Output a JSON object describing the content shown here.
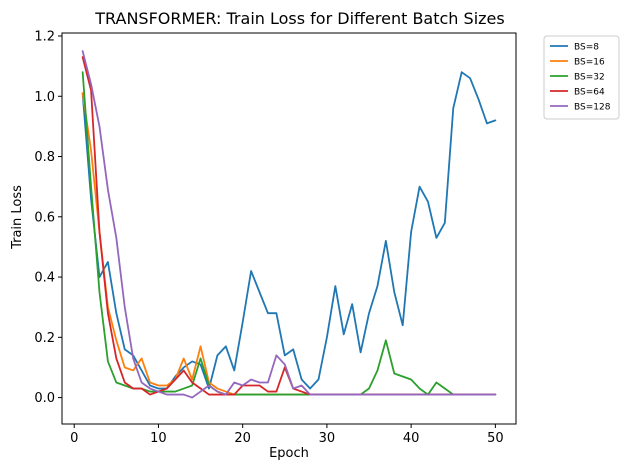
{
  "chart_data": {
    "type": "line",
    "title": "TRANSFORMER: Train Loss for Different Batch Sizes",
    "xlabel": "Epoch",
    "ylabel": "Train Loss",
    "xlim": [
      -1.45,
      52.45
    ],
    "ylim": [
      -0.0877,
      1.21
    ],
    "xticks": [
      0,
      10,
      20,
      30,
      40,
      50
    ],
    "yticks": [
      0.0,
      0.2,
      0.4,
      0.6,
      0.8,
      1.0,
      1.2
    ],
    "ytick_labels": [
      "0.0",
      "0.2",
      "0.4",
      "0.6",
      "0.8",
      "1.0",
      "1.2"
    ],
    "grid": false,
    "legend_position": "outside-top-right",
    "series": [
      {
        "name": "BS=8",
        "color": "#1f77b4",
        "x": [
          1,
          2,
          3,
          4,
          5,
          6,
          7,
          8,
          9,
          10,
          11,
          12,
          13,
          14,
          15,
          16,
          17,
          18,
          19,
          20,
          21,
          22,
          23,
          24,
          25,
          26,
          27,
          28,
          29,
          30,
          31,
          32,
          33,
          34,
          35,
          36,
          37,
          38,
          39,
          40,
          41,
          42,
          43,
          44,
          45,
          46,
          47,
          48,
          49,
          50
        ],
        "values": [
          1.01,
          0.66,
          0.4,
          0.45,
          0.28,
          0.16,
          0.14,
          0.09,
          0.04,
          0.03,
          0.03,
          0.07,
          0.1,
          0.12,
          0.11,
          0.03,
          0.14,
          0.17,
          0.09,
          0.25,
          0.42,
          0.35,
          0.28,
          0.28,
          0.14,
          0.16,
          0.06,
          0.03,
          0.06,
          0.2,
          0.37,
          0.21,
          0.31,
          0.15,
          0.28,
          0.37,
          0.52,
          0.35,
          0.24,
          0.55,
          0.7,
          0.65,
          0.53,
          0.58,
          0.96,
          1.08,
          1.06,
          0.99,
          0.91,
          0.92
        ]
      },
      {
        "name": "BS=16",
        "color": "#ff7f0e",
        "x": [
          1,
          2,
          3,
          4,
          5,
          6,
          7,
          8,
          9,
          10,
          11,
          12,
          13,
          14,
          15,
          16,
          17,
          18,
          19,
          20,
          21,
          22,
          23,
          24,
          25,
          26,
          27,
          28,
          29,
          30,
          31,
          32,
          33,
          34,
          35,
          36,
          37,
          38,
          39,
          40,
          41,
          42,
          43,
          44,
          45,
          46,
          47,
          48,
          49,
          50
        ],
        "values": [
          1.01,
          0.82,
          0.55,
          0.3,
          0.19,
          0.1,
          0.09,
          0.13,
          0.05,
          0.04,
          0.04,
          0.06,
          0.13,
          0.06,
          0.17,
          0.05,
          0.03,
          0.02,
          0.01,
          0.01,
          0.01,
          0.01,
          0.01,
          0.01,
          0.01,
          0.01,
          0.01,
          0.01,
          0.01,
          0.01,
          0.01,
          0.01,
          0.01,
          0.01,
          0.01,
          0.01,
          0.01,
          0.01,
          0.01,
          0.01,
          0.01,
          0.01,
          0.01,
          0.01,
          0.01,
          0.01,
          0.01,
          0.01,
          0.01,
          0.01
        ]
      },
      {
        "name": "BS=32",
        "color": "#2ca02c",
        "x": [
          1,
          2,
          3,
          4,
          5,
          6,
          7,
          8,
          9,
          10,
          11,
          12,
          13,
          14,
          15,
          16,
          17,
          18,
          19,
          20,
          21,
          22,
          23,
          24,
          25,
          26,
          27,
          28,
          29,
          30,
          31,
          32,
          33,
          34,
          35,
          36,
          37,
          38,
          39,
          40,
          41,
          42,
          43,
          44,
          45,
          46,
          47,
          48,
          49,
          50
        ],
        "values": [
          1.08,
          0.7,
          0.35,
          0.12,
          0.05,
          0.04,
          0.03,
          0.03,
          0.02,
          0.02,
          0.02,
          0.02,
          0.03,
          0.04,
          0.13,
          0.04,
          0.02,
          0.01,
          0.01,
          0.01,
          0.01,
          0.01,
          0.01,
          0.01,
          0.01,
          0.01,
          0.01,
          0.01,
          0.01,
          0.01,
          0.01,
          0.01,
          0.01,
          0.01,
          0.03,
          0.09,
          0.19,
          0.08,
          0.07,
          0.06,
          0.03,
          0.01,
          0.05,
          0.03,
          0.01,
          0.01,
          0.01,
          0.01,
          0.01,
          0.01
        ]
      },
      {
        "name": "BS=64",
        "color": "#d62728",
        "x": [
          1,
          2,
          3,
          4,
          5,
          6,
          7,
          8,
          9,
          10,
          11,
          12,
          13,
          14,
          15,
          16,
          17,
          18,
          19,
          20,
          21,
          22,
          23,
          24,
          25,
          26,
          27,
          28,
          29,
          30,
          31,
          32,
          33,
          34,
          35,
          36,
          37,
          38,
          39,
          40,
          41,
          42,
          43,
          44,
          45,
          46,
          47,
          48,
          49,
          50
        ],
        "values": [
          1.13,
          1.02,
          0.55,
          0.28,
          0.13,
          0.05,
          0.03,
          0.03,
          0.01,
          0.02,
          0.03,
          0.06,
          0.09,
          0.05,
          0.03,
          0.01,
          0.01,
          0.01,
          0.01,
          0.04,
          0.04,
          0.04,
          0.02,
          0.02,
          0.1,
          0.03,
          0.02,
          0.01,
          0.01,
          0.01,
          0.01,
          0.01,
          0.01,
          0.01,
          0.01,
          0.01,
          0.01,
          0.01,
          0.01,
          0.01,
          0.01,
          0.01,
          0.01,
          0.01,
          0.01,
          0.01,
          0.01,
          0.01,
          0.01,
          0.01
        ]
      },
      {
        "name": "BS=128",
        "color": "#9467bd",
        "x": [
          1,
          2,
          3,
          4,
          5,
          6,
          7,
          8,
          9,
          10,
          11,
          12,
          13,
          14,
          15,
          16,
          17,
          18,
          19,
          20,
          21,
          22,
          23,
          24,
          25,
          26,
          27,
          28,
          29,
          30,
          31,
          32,
          33,
          34,
          35,
          36,
          37,
          38,
          39,
          40,
          41,
          42,
          43,
          44,
          45,
          46,
          47,
          48,
          49,
          50
        ],
        "values": [
          1.15,
          1.04,
          0.9,
          0.69,
          0.53,
          0.3,
          0.13,
          0.05,
          0.03,
          0.02,
          0.01,
          0.01,
          0.01,
          0.0,
          0.02,
          0.04,
          0.02,
          0.01,
          0.05,
          0.04,
          0.06,
          0.05,
          0.05,
          0.14,
          0.11,
          0.03,
          0.04,
          0.01,
          0.01,
          0.01,
          0.01,
          0.01,
          0.01,
          0.01,
          0.01,
          0.01,
          0.01,
          0.01,
          0.01,
          0.01,
          0.01,
          0.01,
          0.01,
          0.01,
          0.01,
          0.01,
          0.01,
          0.01,
          0.01,
          0.01
        ]
      }
    ]
  }
}
